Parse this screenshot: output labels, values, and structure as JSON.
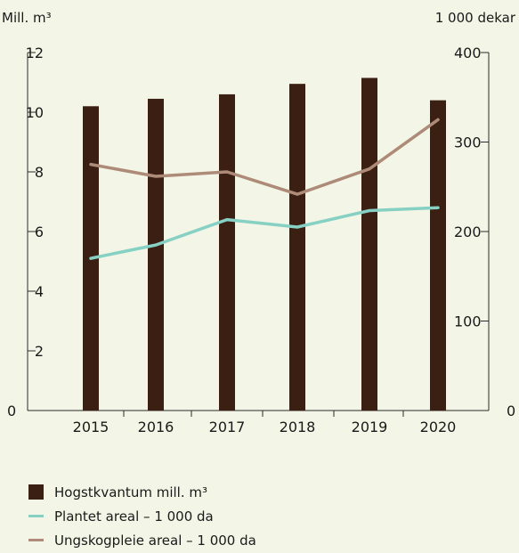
{
  "chart_data": {
    "type": "bar",
    "left_axis_unit": "Mill. m³",
    "right_axis_unit": "1 000 dekar",
    "categories": [
      "2015",
      "2016",
      "2017",
      "2018",
      "2019",
      "2020"
    ],
    "left_axis": {
      "ticks": [
        "0",
        "2",
        "4",
        "6",
        "8",
        "10",
        "12"
      ],
      "ylim": [
        0,
        12
      ]
    },
    "right_axis": {
      "ticks": [
        "0",
        "100",
        "200",
        "300",
        "400"
      ],
      "ylim": [
        0,
        400
      ]
    },
    "series": [
      {
        "name": "Hogstkvantum mill. m³",
        "kind": "bar",
        "axis": "left",
        "color": "#3b1f12",
        "values": [
          10.2,
          10.45,
          10.6,
          10.95,
          11.15,
          10.4
        ]
      },
      {
        "name": "Plantet areal – 1 000 da",
        "kind": "line",
        "axis": "left",
        "color": "#86d1c4",
        "values": [
          5.1,
          5.55,
          6.4,
          6.15,
          6.7,
          6.8
        ]
      },
      {
        "name": "Ungskogpleie areal – 1 000 da",
        "kind": "line",
        "axis": "left",
        "color": "#ae8b78",
        "values": [
          8.25,
          7.85,
          8.0,
          7.25,
          8.1,
          9.75
        ]
      }
    ],
    "grid": false,
    "legend_position": "bottom-left"
  }
}
